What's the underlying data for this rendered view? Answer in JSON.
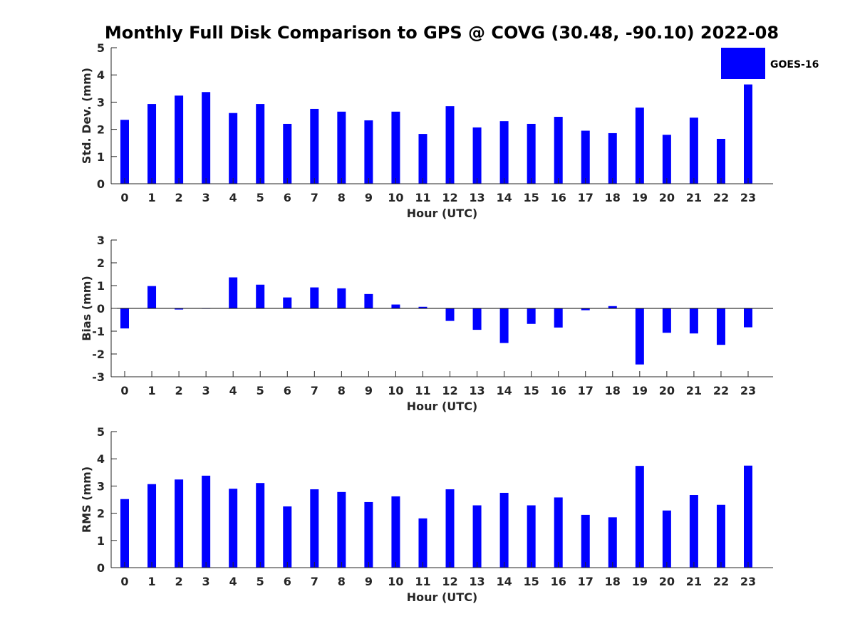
{
  "title": "Monthly Full Disk Comparison to GPS @ COVG (30.48, -90.10) 2022-08",
  "colors": {
    "bar": "#0000ff",
    "axis": "#262626",
    "background": "#ffffff"
  },
  "legend": {
    "label": "GOES-16",
    "placement": "top-right"
  },
  "chart_data": [
    {
      "type": "bar",
      "xlabel": "Hour (UTC)",
      "ylabel": "Std. Dev. (mm)",
      "ylim": [
        0,
        5
      ],
      "yticks": [
        0,
        1,
        2,
        3,
        4,
        5
      ],
      "categories": [
        "0",
        "1",
        "2",
        "3",
        "4",
        "5",
        "6",
        "7",
        "8",
        "9",
        "10",
        "11",
        "12",
        "13",
        "14",
        "15",
        "16",
        "17",
        "18",
        "19",
        "20",
        "21",
        "22",
        "23"
      ],
      "series": [
        {
          "name": "GOES-16",
          "values": [
            2.35,
            2.93,
            3.24,
            3.37,
            2.6,
            2.93,
            2.2,
            2.75,
            2.65,
            2.33,
            2.65,
            1.83,
            2.85,
            2.07,
            2.3,
            2.2,
            2.46,
            1.95,
            1.86,
            2.8,
            1.8,
            2.43,
            1.65,
            3.65
          ]
        }
      ]
    },
    {
      "type": "bar",
      "xlabel": "Hour (UTC)",
      "ylabel": "Bias (mm)",
      "ylim": [
        -3,
        3
      ],
      "yticks": [
        -3,
        -2,
        -1,
        0,
        1,
        2,
        3
      ],
      "categories": [
        "0",
        "1",
        "2",
        "3",
        "4",
        "5",
        "6",
        "7",
        "8",
        "9",
        "10",
        "11",
        "12",
        "13",
        "14",
        "15",
        "16",
        "17",
        "18",
        "19",
        "20",
        "21",
        "22",
        "23"
      ],
      "series": [
        {
          "name": "GOES-16",
          "values": [
            -0.88,
            0.98,
            -0.05,
            -0.01,
            1.36,
            1.04,
            0.48,
            0.92,
            0.88,
            0.63,
            0.17,
            0.07,
            -0.55,
            -0.94,
            -1.52,
            -0.68,
            -0.84,
            -0.08,
            0.1,
            -2.46,
            -1.07,
            -1.1,
            -1.6,
            -0.83
          ]
        }
      ]
    },
    {
      "type": "bar",
      "xlabel": "Hour (UTC)",
      "ylabel": "RMS (mm)",
      "ylim": [
        0,
        5
      ],
      "yticks": [
        0,
        1,
        2,
        3,
        4,
        5
      ],
      "categories": [
        "0",
        "1",
        "2",
        "3",
        "4",
        "5",
        "6",
        "7",
        "8",
        "9",
        "10",
        "11",
        "12",
        "13",
        "14",
        "15",
        "16",
        "17",
        "18",
        "19",
        "20",
        "21",
        "22",
        "23"
      ],
      "series": [
        {
          "name": "GOES-16",
          "values": [
            2.52,
            3.07,
            3.24,
            3.38,
            2.9,
            3.11,
            2.25,
            2.88,
            2.78,
            2.41,
            2.62,
            1.81,
            2.88,
            2.29,
            2.75,
            2.29,
            2.58,
            1.94,
            1.85,
            3.74,
            2.1,
            2.67,
            2.31,
            3.75
          ]
        }
      ]
    }
  ]
}
